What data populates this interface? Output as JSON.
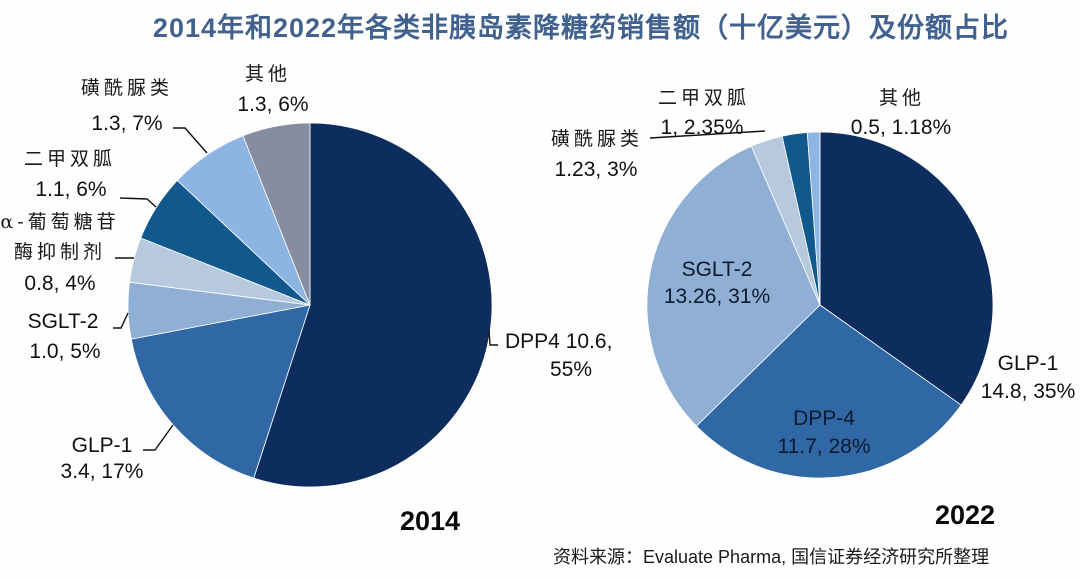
{
  "title": "2014年和2022年各类非胰岛素降糖药销售额（十亿美元）及份额占比",
  "source": "资料来源：Evaluate Pharma, 国信证券经济研究所整理",
  "chart_data": [
    {
      "type": "pie",
      "title": "2014",
      "unit": "十亿美元",
      "start": "12 o'clock, clockwise",
      "slices": [
        {
          "name": "DPP4",
          "value": 10.6,
          "percent": 55,
          "color": "#0d2d5e",
          "label_lines": [
            "DPP4  10.6,",
            "55%"
          ]
        },
        {
          "name": "GLP-1",
          "value": 3.4,
          "percent": 17,
          "color": "#2f68a5",
          "label_lines": [
            "GLP-1",
            "3.4, 17%"
          ]
        },
        {
          "name": "SGLT-2",
          "value": 1.0,
          "percent": 5,
          "color": "#8fafd5",
          "label_lines": [
            "SGLT-2",
            "1.0, 5%"
          ]
        },
        {
          "name": "α-葡萄糖苷酶抑制剂",
          "value": 0.8,
          "percent": 4,
          "color": "#b6c9df",
          "label_lines": [
            "α-葡萄糖苷",
            "酶抑制剂",
            "0.8, 4%"
          ]
        },
        {
          "name": "二甲双胍",
          "value": 1.1,
          "percent": 6,
          "color": "#11598c",
          "label_lines": [
            "二甲双胍",
            "1.1, 6%"
          ]
        },
        {
          "name": "磺酰脲类",
          "value": 1.3,
          "percent": 7,
          "color": "#8db5e3",
          "label_lines": [
            "磺酰脲类",
            "1.3, 7%"
          ]
        },
        {
          "name": "其他",
          "value": 1.3,
          "percent": 6,
          "color": "#868da0",
          "label_lines": [
            "其他",
            "1.3, 6%"
          ]
        }
      ]
    },
    {
      "type": "pie",
      "title": "2022",
      "unit": "十亿美元",
      "start": "12 o'clock, clockwise",
      "slices": [
        {
          "name": "GLP-1",
          "value": 14.8,
          "percent": 35,
          "color": "#0d2d5e",
          "label_lines": [
            "GLP-1",
            "14.8, 35%"
          ]
        },
        {
          "name": "DPP-4",
          "value": 11.7,
          "percent": 28,
          "color": "#2f68a5",
          "label_lines": [
            "DPP-4",
            "11.7, 28%"
          ]
        },
        {
          "name": "SGLT-2",
          "value": 13.26,
          "percent": 31,
          "color": "#8fafd5",
          "label_lines": [
            "SGLT-2",
            "13.26, 31%"
          ]
        },
        {
          "name": "磺酰脲类",
          "value": 1.23,
          "percent": 3,
          "color": "#b6c9df",
          "label_lines": [
            "磺酰脲类",
            "1.23, 3%"
          ]
        },
        {
          "name": "二甲双胍",
          "value": 1,
          "percent": 2.35,
          "color": "#11598c",
          "label_lines": [
            "二甲双胍",
            "1, 2.35%"
          ]
        },
        {
          "name": "其他",
          "value": 0.5,
          "percent": 1.18,
          "color": "#8db5e3",
          "label_lines": [
            "其他",
            "0.5, 1.18%"
          ]
        }
      ]
    }
  ]
}
